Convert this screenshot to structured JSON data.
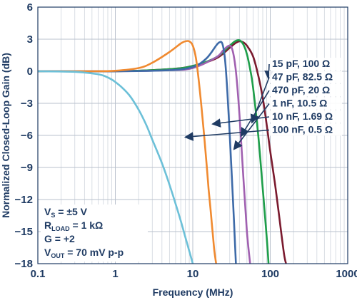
{
  "chart_data": {
    "type": "line",
    "xlabel": "Frequency (MHz)",
    "ylabel": "Normalized Closed-Loop Gain (dB)",
    "xscale": "log",
    "xlim": [
      0.1,
      1000
    ],
    "ylim": [
      -18,
      6
    ],
    "x_ticks": [
      "0.1",
      "1",
      "10",
      "100",
      "1000"
    ],
    "y_ticks": [
      "6",
      "3",
      "0",
      "−3",
      "−6",
      "−9",
      "−12",
      "−15",
      "−18"
    ],
    "grid": true,
    "series": [
      {
        "name": "15 pF, 100 Ω",
        "color": "#7a1a2e",
        "x": [
          0.1,
          1,
          5,
          10,
          20,
          30,
          35,
          40,
          45,
          50,
          60,
          70,
          80,
          90,
          100,
          115,
          130,
          150,
          160
        ],
        "y": [
          0,
          0,
          0.2,
          0.5,
          1.2,
          2.2,
          2.6,
          2.8,
          2.7,
          2.4,
          1.4,
          -0.4,
          -2.5,
          -5,
          -7.5,
          -10.5,
          -13.5,
          -17,
          -18
        ]
      },
      {
        "name": "47 pF, 82.5 Ω",
        "color": "#1e9e4a",
        "x": [
          0.1,
          1,
          5,
          10,
          20,
          30,
          35,
          40,
          45,
          50,
          55,
          60,
          70,
          80,
          90,
          95
        ],
        "y": [
          0,
          0,
          0.2,
          0.5,
          1.3,
          2.4,
          2.8,
          2.9,
          2.5,
          1.6,
          0.2,
          -1.5,
          -6,
          -11,
          -15.5,
          -18
        ]
      },
      {
        "name": "470 pF, 20 Ω",
        "color": "#a060b0",
        "x": [
          0.1,
          1,
          5,
          10,
          20,
          25,
          30,
          33,
          36,
          40,
          45,
          50,
          55
        ],
        "y": [
          0,
          0,
          0.1,
          0.3,
          1.3,
          2.0,
          2.4,
          1.8,
          0,
          -4,
          -10,
          -15,
          -18
        ]
      },
      {
        "name": "1 nF, 10.5 Ω",
        "color": "#3d6aa8",
        "x": [
          0.1,
          1,
          5,
          10,
          15,
          20,
          22,
          24,
          26,
          28,
          30,
          32,
          34,
          36
        ],
        "y": [
          0,
          0,
          0.1,
          0.4,
          1.2,
          2.4,
          2.7,
          2.6,
          1.2,
          -2,
          -6,
          -10,
          -14,
          -18
        ]
      },
      {
        "name": "10 nF, 1.69 Ω",
        "color": "#f08a30",
        "x": [
          0.1,
          0.5,
          1,
          2,
          3,
          5,
          7,
          8,
          9,
          10,
          11,
          12,
          13,
          14,
          15,
          16,
          17,
          18,
          19,
          20
        ],
        "y": [
          0,
          0,
          0.05,
          0.3,
          0.8,
          1.8,
          2.6,
          2.8,
          2.8,
          2.4,
          1.2,
          -1,
          -3.5,
          -6,
          -8.5,
          -11,
          -13,
          -15,
          -16.8,
          -18
        ]
      },
      {
        "name": "100 nF, 0.5 Ω",
        "color": "#6cc0d8",
        "x": [
          0.1,
          0.3,
          0.5,
          0.7,
          1,
          1.5,
          2,
          2.5,
          3,
          4,
          5,
          6,
          7,
          8,
          9,
          10
        ],
        "y": [
          0,
          -0.05,
          -0.2,
          -0.4,
          -1,
          -2.2,
          -3.6,
          -5,
          -6.4,
          -8.6,
          -10.6,
          -12.4,
          -14,
          -15.5,
          -16.8,
          -18
        ]
      }
    ],
    "annotations": [
      {
        "text": "15 pF, 100 Ω",
        "arrow_to": [
          95,
          -0.7
        ]
      },
      {
        "text": "47 pF, 82.5 Ω",
        "arrow_to": [
          58,
          -4.8
        ]
      },
      {
        "text": "470 pF, 20 Ω",
        "arrow_to": [
          42,
          -11
        ]
      },
      {
        "text": "1 nF, 10.5 Ω",
        "arrow_to": [
          34,
          -16.5
        ]
      },
      {
        "text": "10 nF, 1.69 Ω",
        "arrow_to": [
          18,
          -23.5
        ]
      },
      {
        "text": "100 nF, 0.5 Ω",
        "arrow_to": [
          8,
          -35
        ]
      }
    ],
    "conditions": [
      {
        "main": "V",
        "sub": "S",
        "rest": " = ±5 V"
      },
      {
        "main": "R",
        "sub": "LOAD",
        "rest": " = 1 kΩ"
      },
      {
        "main": "G = +2",
        "sub": "",
        "rest": ""
      },
      {
        "main": "V",
        "sub": "OUT",
        "rest": " = 70 mV p-p"
      }
    ]
  }
}
